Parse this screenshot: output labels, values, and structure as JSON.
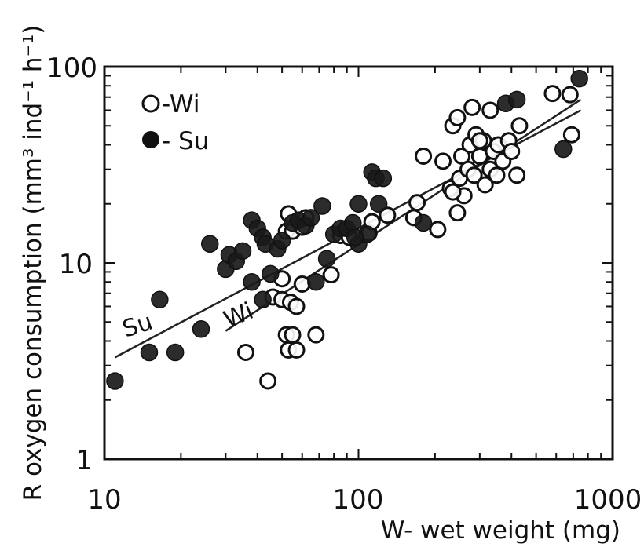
{
  "chart_data": {
    "type": "scatter",
    "title": "",
    "xlabel": "W- wet weight (mg)",
    "ylabel": "R  oxygen consumption (mm³ ind⁻¹ h⁻¹)",
    "xscale": "log",
    "yscale": "log",
    "xlim": [
      10,
      1000
    ],
    "ylim": [
      1,
      100
    ],
    "x_ticks": [
      "10",
      "100",
      "1000"
    ],
    "y_ticks": [
      "1",
      "10",
      "100"
    ],
    "grid": false,
    "legend_position": "top-left",
    "legend": [
      {
        "marker": "open-circle",
        "label": "-Wi"
      },
      {
        "marker": "filled-circle",
        "label": "- Su"
      }
    ],
    "series": [
      {
        "name": "Wi",
        "marker": "open-circle",
        "points": [
          [
            36,
            3.5
          ],
          [
            44,
            2.5
          ],
          [
            52,
            4.3
          ],
          [
            53,
            3.6
          ],
          [
            55,
            4.3
          ],
          [
            57,
            3.6
          ],
          [
            68,
            4.3
          ],
          [
            46,
            6.7
          ],
          [
            50,
            6.5
          ],
          [
            54,
            6.3
          ],
          [
            57,
            6.0
          ],
          [
            60,
            7.8
          ],
          [
            78,
            8.7
          ],
          [
            50,
            8.3
          ],
          [
            52,
            14.5
          ],
          [
            55,
            14.5
          ],
          [
            60,
            15.2
          ],
          [
            53,
            17.8
          ],
          [
            62,
            17.0
          ],
          [
            85,
            13.8
          ],
          [
            92,
            13.5
          ],
          [
            110,
            14.2
          ],
          [
            113,
            16.2
          ],
          [
            130,
            17.5
          ],
          [
            165,
            17.0
          ],
          [
            170,
            20.3
          ],
          [
            180,
            35.0
          ],
          [
            205,
            14.8
          ],
          [
            215,
            33.0
          ],
          [
            230,
            24.0
          ],
          [
            235,
            50.0
          ],
          [
            245,
            55.0
          ],
          [
            250,
            27.0
          ],
          [
            255,
            35.0
          ],
          [
            245,
            18.0
          ],
          [
            260,
            22.0
          ],
          [
            270,
            30.0
          ],
          [
            275,
            40.0
          ],
          [
            285,
            28.0
          ],
          [
            290,
            45.0
          ],
          [
            300,
            35.0
          ],
          [
            310,
            42.0
          ],
          [
            315,
            25.0
          ],
          [
            330,
            30.0
          ],
          [
            340,
            37.0
          ],
          [
            350,
            28.0
          ],
          [
            355,
            40.0
          ],
          [
            370,
            33.0
          ],
          [
            390,
            42.0
          ],
          [
            400,
            37.0
          ],
          [
            420,
            28.0
          ],
          [
            430,
            50.0
          ],
          [
            280,
            62.0
          ],
          [
            330,
            60.0
          ],
          [
            580,
            73.0
          ],
          [
            680,
            72.0
          ],
          [
            690,
            45.0
          ],
          [
            235,
            23.0
          ],
          [
            300,
            42.0
          ]
        ]
      },
      {
        "name": "Su",
        "marker": "filled-circle",
        "points": [
          [
            11,
            2.5
          ],
          [
            15,
            3.5
          ],
          [
            16.5,
            6.5
          ],
          [
            19,
            3.5
          ],
          [
            24,
            4.6
          ],
          [
            26,
            12.5
          ],
          [
            30,
            9.3
          ],
          [
            31,
            11.0
          ],
          [
            33,
            10.2
          ],
          [
            35,
            11.5
          ],
          [
            38,
            16.5
          ],
          [
            40,
            15.0
          ],
          [
            42,
            13.5
          ],
          [
            43,
            12.5
          ],
          [
            38,
            8.0
          ],
          [
            45,
            8.8
          ],
          [
            48,
            11.8
          ],
          [
            50,
            13.0
          ],
          [
            55,
            16.0
          ],
          [
            58,
            16.5
          ],
          [
            62,
            15.5
          ],
          [
            65,
            17.0
          ],
          [
            68,
            8.0
          ],
          [
            72,
            19.5
          ],
          [
            75,
            10.5
          ],
          [
            80,
            14.0
          ],
          [
            85,
            15.0
          ],
          [
            90,
            15.0
          ],
          [
            95,
            16.0
          ],
          [
            100,
            12.5
          ],
          [
            108,
            14.0
          ],
          [
            113,
            29.0
          ],
          [
            117,
            27.0
          ],
          [
            120,
            20.0
          ],
          [
            125,
            27.0
          ],
          [
            100,
            20.0
          ],
          [
            180,
            16.0
          ],
          [
            380,
            65.0
          ],
          [
            420,
            68.0
          ],
          [
            640,
            38.0
          ],
          [
            740,
            87.0
          ],
          [
            42,
            6.5
          ],
          [
            97,
            13.5
          ]
        ]
      }
    ],
    "fit_lines": [
      {
        "label": "Su",
        "points": [
          [
            11,
            3.3
          ],
          [
            750,
            60
          ]
        ]
      },
      {
        "label": "Wi",
        "points": [
          [
            30,
            4.5
          ],
          [
            750,
            68
          ]
        ]
      }
    ]
  }
}
